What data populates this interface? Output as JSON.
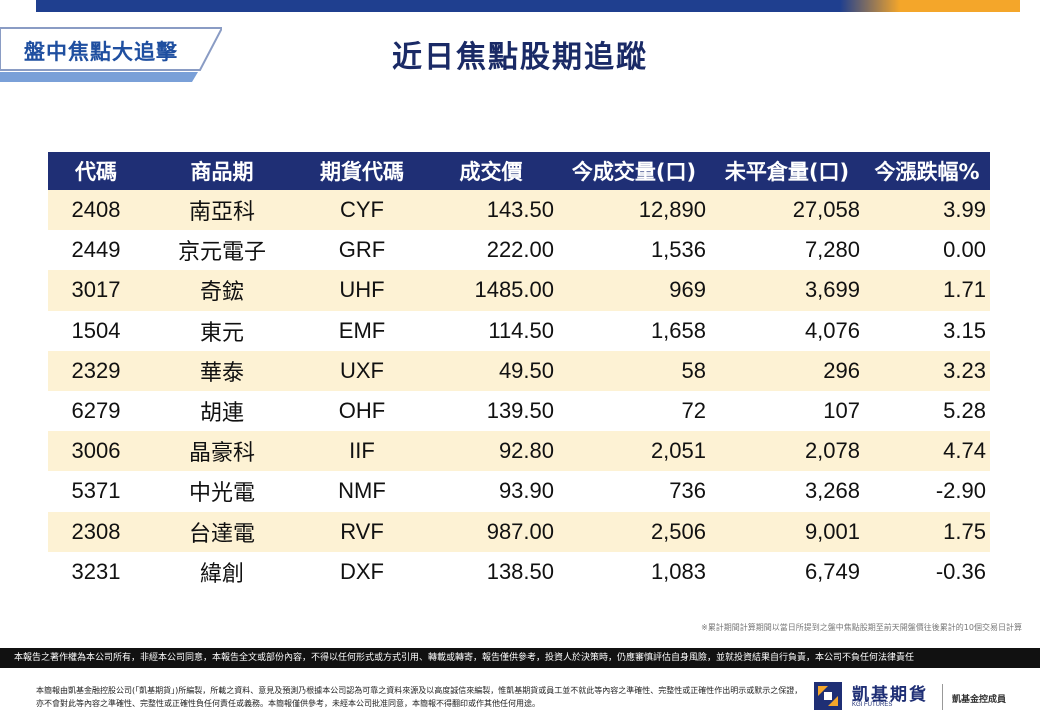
{
  "header": {
    "tag": "盤中焦點大追擊",
    "title": "近日焦點股期追蹤"
  },
  "colors": {
    "brand_navy": "#1f2f75",
    "accent_orange": "#f4a62a",
    "row_highlight": "#fdf2d4"
  },
  "table": {
    "columns": [
      "代碼",
      "商品期",
      "期貨代碼",
      "成交價",
      "今成交量(口)",
      "未平倉量(口)",
      "今漲跌幅%"
    ],
    "rows": [
      [
        "2408",
        "南亞科",
        "CYF",
        "143.50",
        "12,890",
        "27,058",
        "3.99"
      ],
      [
        "2449",
        "京元電子",
        "GRF",
        "222.00",
        "1,536",
        "7,280",
        "0.00"
      ],
      [
        "3017",
        "奇鋐",
        "UHF",
        "1485.00",
        "969",
        "3,699",
        "1.71"
      ],
      [
        "1504",
        "東元",
        "EMF",
        "114.50",
        "1,658",
        "4,076",
        "3.15"
      ],
      [
        "2329",
        "華泰",
        "UXF",
        "49.50",
        "58",
        "296",
        "3.23"
      ],
      [
        "6279",
        "胡連",
        "OHF",
        "139.50",
        "72",
        "107",
        "5.28"
      ],
      [
        "3006",
        "晶豪科",
        "IIF",
        "92.80",
        "2,051",
        "2,078",
        "4.74"
      ],
      [
        "5371",
        "中光電",
        "NMF",
        "93.90",
        "736",
        "3,268",
        "-2.90"
      ],
      [
        "2308",
        "台達電",
        "RVF",
        "987.00",
        "2,506",
        "9,001",
        "1.75"
      ],
      [
        "3231",
        "緯創",
        "DXF",
        "138.50",
        "1,083",
        "6,749",
        "-0.36"
      ]
    ]
  },
  "note": "※累計期間計算期間以當日所提到之盤中焦點股期至前天開盤價往後累計的10個交易日計算",
  "disclaimer": "本報告之著作權為本公司所有，非經本公司同意，本報告全文或部份內容，不得以任何形式或方式引用、轉載或轉寄，報告僅供參考，投資人於決策時，仍應審慎評估自身風險，並就投資結果自行負責，本公司不負任何法律責任",
  "footer": {
    "text": "本簡報由凱基金融控股公司(「凱基期貨」)所編製，所載之資料、意見及預測乃根據本公司認為可靠之資料來源及以高度誠信來編製，惟凱基期貨或員工並不就此等內容之準確性、完整性或正確性作出明示或默示之保證，亦不會對此等內容之準確性、完整性或正確性負任何責任或義務。本簡報僅供參考，未經本公司批准同意，本簡報不得翻印或作其他任何用途。",
    "logo_name": "凱基期貨",
    "logo_sub": "KGI FUTURES",
    "logo_group": "凱基金控成員",
    "logo_icon": "kgi-logo-icon"
  }
}
